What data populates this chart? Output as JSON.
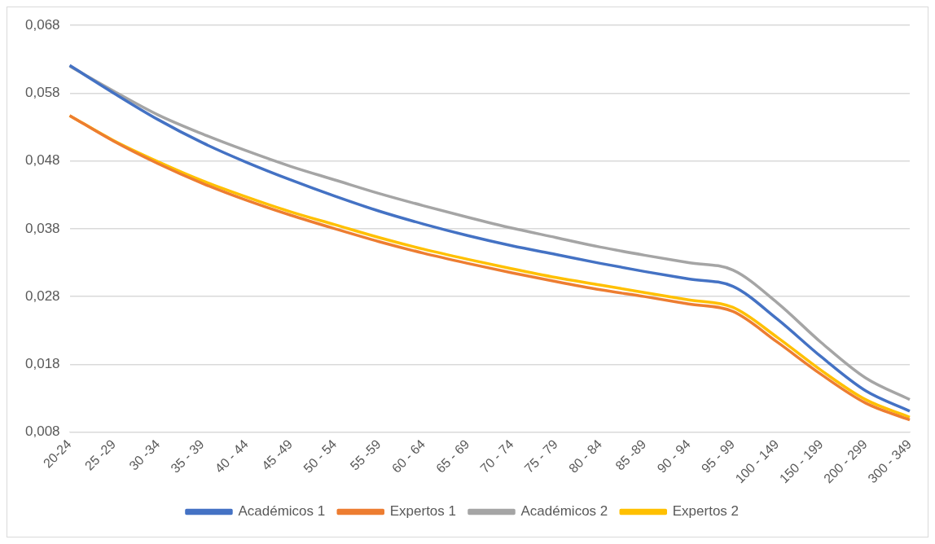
{
  "chart_data": {
    "type": "line",
    "categories": [
      "20-24",
      "25 -29",
      "30 -34",
      "35 - 39",
      "40 - 44",
      "45 -49",
      "50 - 54",
      "55 -59",
      "60 - 64",
      "65 - 69",
      "70 - 74",
      "75 - 79",
      "80 - 84",
      "85 -89",
      "90 - 94",
      "95 - 99",
      "100 - 149",
      "150 - 199",
      "200 - 299",
      "300 - 349"
    ],
    "series": [
      {
        "name": "Académicos 1",
        "color": "#4472c4",
        "values": [
          0.0621,
          0.058,
          0.0541,
          0.0507,
          0.0478,
          0.0452,
          0.0428,
          0.0406,
          0.0387,
          0.037,
          0.0355,
          0.0342,
          0.0329,
          0.0317,
          0.0306,
          0.0295,
          0.0247,
          0.0191,
          0.0141,
          0.0111
        ]
      },
      {
        "name": "Expertos 1",
        "color": "#ed7d31",
        "values": [
          0.0547,
          0.0509,
          0.0476,
          0.0447,
          0.0422,
          0.04,
          0.038,
          0.0361,
          0.0344,
          0.0329,
          0.0315,
          0.0302,
          0.029,
          0.028,
          0.0269,
          0.0258,
          0.0213,
          0.0165,
          0.0123,
          0.0098
        ]
      },
      {
        "name": "Académicos 2",
        "color": "#a5a5a5",
        "values": [
          0.062,
          0.0583,
          0.0548,
          0.052,
          0.0495,
          0.0472,
          0.0452,
          0.0432,
          0.0414,
          0.0397,
          0.0381,
          0.0367,
          0.0353,
          0.0341,
          0.033,
          0.0319,
          0.0271,
          0.0212,
          0.016,
          0.0128
        ]
      },
      {
        "name": "Expertos 2",
        "color": "#ffc000",
        "values": [
          0.0547,
          0.051,
          0.0479,
          0.0451,
          0.0427,
          0.0405,
          0.0386,
          0.0367,
          0.035,
          0.0335,
          0.0321,
          0.0308,
          0.0297,
          0.0286,
          0.0275,
          0.0264,
          0.022,
          0.0171,
          0.0128,
          0.0102
        ]
      }
    ],
    "ylim": [
      0.008,
      0.068
    ],
    "yticks": [
      {
        "value": 0.008,
        "label": "0,008"
      },
      {
        "value": 0.018,
        "label": "0,018"
      },
      {
        "value": 0.028,
        "label": "0,028"
      },
      {
        "value": 0.038,
        "label": "0,038"
      },
      {
        "value": 0.048,
        "label": "0,048"
      },
      {
        "value": 0.058,
        "label": "0,058"
      },
      {
        "value": 0.068,
        "label": "0,068"
      }
    ],
    "grid": "y",
    "legend": "bottom",
    "marker": "none",
    "line_style": "solid"
  }
}
